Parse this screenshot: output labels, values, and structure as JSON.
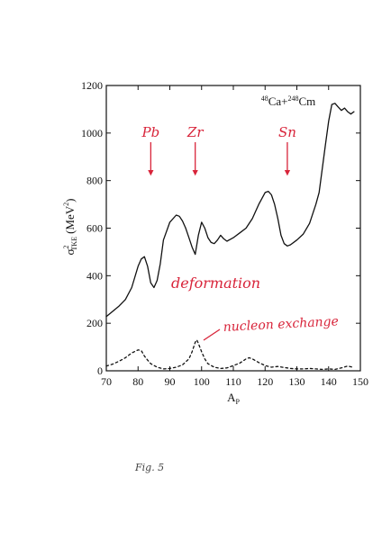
{
  "chart_data": {
    "type": "line",
    "title": "48Ca+248Cm",
    "title_parts": {
      "mass1": "48",
      "el1": "Ca+",
      "mass2": "248",
      "el2": "Cm"
    },
    "xlabel": {
      "main": "A",
      "sub": "P"
    },
    "ylabel": {
      "sigma": "σ",
      "sup": "2",
      "sub": "TKE",
      "unit": "(MeV",
      "unit_sup": "2",
      "unit_close": ")"
    },
    "xlim": [
      70,
      150
    ],
    "ylim": [
      0,
      1200
    ],
    "xticks": [
      70,
      80,
      90,
      100,
      110,
      120,
      130,
      140,
      150
    ],
    "yticks": [
      0,
      200,
      400,
      600,
      800,
      1000,
      1200
    ],
    "grid": false,
    "series": [
      {
        "name": "deformation",
        "style": "solid",
        "color": "#111111",
        "points": [
          [
            70,
            228
          ],
          [
            72,
            250
          ],
          [
            74,
            272
          ],
          [
            76,
            300
          ],
          [
            78,
            350
          ],
          [
            80,
            440
          ],
          [
            81,
            470
          ],
          [
            82,
            480
          ],
          [
            83,
            440
          ],
          [
            84,
            370
          ],
          [
            85,
            350
          ],
          [
            86,
            380
          ],
          [
            87,
            450
          ],
          [
            88,
            550
          ],
          [
            90,
            625
          ],
          [
            92,
            655
          ],
          [
            93,
            650
          ],
          [
            94,
            630
          ],
          [
            95,
            600
          ],
          [
            96,
            560
          ],
          [
            97,
            520
          ],
          [
            98,
            490
          ],
          [
            99,
            570
          ],
          [
            100,
            625
          ],
          [
            101,
            600
          ],
          [
            102,
            560
          ],
          [
            103,
            540
          ],
          [
            104,
            535
          ],
          [
            105,
            550
          ],
          [
            106,
            570
          ],
          [
            107,
            555
          ],
          [
            108,
            545
          ],
          [
            110,
            560
          ],
          [
            112,
            580
          ],
          [
            114,
            600
          ],
          [
            116,
            640
          ],
          [
            118,
            700
          ],
          [
            120,
            750
          ],
          [
            121,
            755
          ],
          [
            122,
            740
          ],
          [
            123,
            700
          ],
          [
            124,
            640
          ],
          [
            125,
            570
          ],
          [
            126,
            535
          ],
          [
            127,
            525
          ],
          [
            128,
            530
          ],
          [
            130,
            550
          ],
          [
            132,
            575
          ],
          [
            134,
            620
          ],
          [
            136,
            700
          ],
          [
            137,
            750
          ],
          [
            138,
            850
          ],
          [
            139,
            950
          ],
          [
            140,
            1050
          ],
          [
            141,
            1120
          ],
          [
            142,
            1125
          ],
          [
            143,
            1110
          ],
          [
            144,
            1095
          ],
          [
            145,
            1105
          ],
          [
            146,
            1090
          ],
          [
            147,
            1080
          ],
          [
            148,
            1090
          ]
        ]
      },
      {
        "name": "nucleon exchange",
        "style": "dashed",
        "color": "#111111",
        "points": [
          [
            70,
            20
          ],
          [
            72,
            28
          ],
          [
            74,
            40
          ],
          [
            76,
            55
          ],
          [
            78,
            75
          ],
          [
            80,
            88
          ],
          [
            81,
            85
          ],
          [
            82,
            62
          ],
          [
            83,
            45
          ],
          [
            84,
            30
          ],
          [
            86,
            15
          ],
          [
            88,
            8
          ],
          [
            90,
            10
          ],
          [
            92,
            15
          ],
          [
            94,
            25
          ],
          [
            96,
            50
          ],
          [
            97,
            80
          ],
          [
            98,
            120
          ],
          [
            98.5,
            130
          ],
          [
            99,
            115
          ],
          [
            100,
            80
          ],
          [
            101,
            50
          ],
          [
            102,
            30
          ],
          [
            104,
            15
          ],
          [
            106,
            10
          ],
          [
            108,
            12
          ],
          [
            110,
            22
          ],
          [
            112,
            32
          ],
          [
            114,
            50
          ],
          [
            115,
            55
          ],
          [
            116,
            50
          ],
          [
            118,
            35
          ],
          [
            120,
            22
          ],
          [
            122,
            15
          ],
          [
            124,
            18
          ],
          [
            126,
            14
          ],
          [
            128,
            10
          ],
          [
            130,
            8
          ],
          [
            132,
            8
          ],
          [
            134,
            10
          ],
          [
            136,
            8
          ],
          [
            138,
            6
          ],
          [
            140,
            8
          ],
          [
            142,
            6
          ],
          [
            144,
            12
          ],
          [
            146,
            20
          ],
          [
            148,
            14
          ]
        ]
      }
    ],
    "arrows": [
      {
        "label": "Pb",
        "x": 84
      },
      {
        "label": "Zr",
        "x": 98
      },
      {
        "label": "Sn",
        "x": 127
      }
    ],
    "annotations": {
      "deformation": "deformation",
      "nucleon_exchange": "nucleon exchange"
    }
  },
  "figure_label": "Fig. 5",
  "colors": {
    "ink": "#111111",
    "annotation": "#d8243a"
  }
}
